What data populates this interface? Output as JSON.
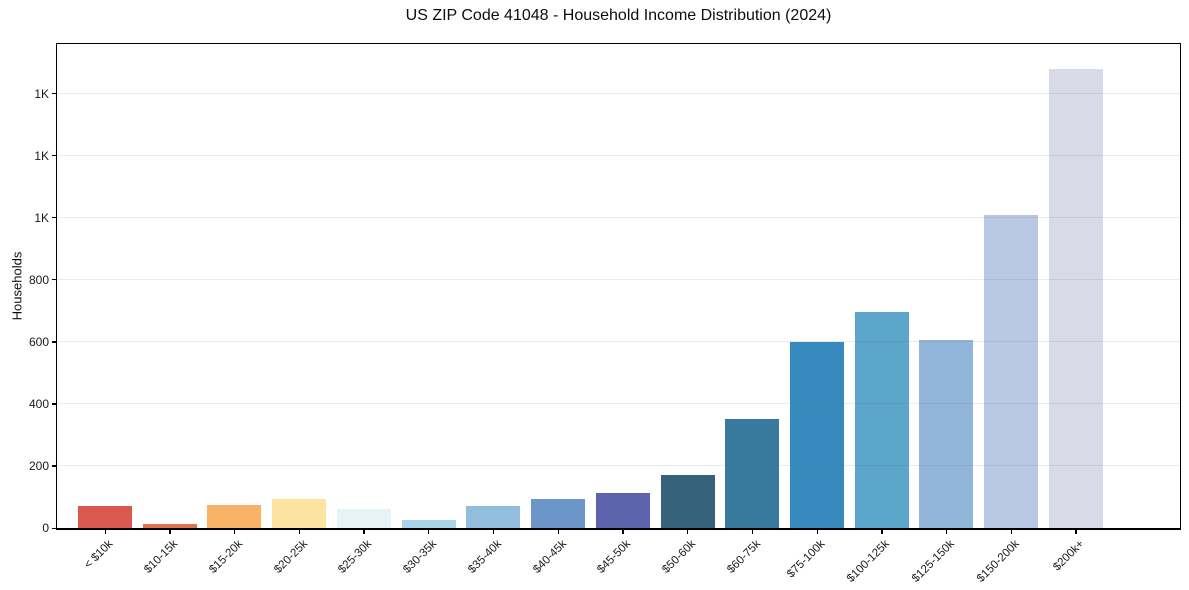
{
  "chart_data": {
    "type": "bar",
    "title": "US ZIP Code 41048 - Household Income Distribution (2024)",
    "xlabel": "",
    "ylabel": "Households",
    "ylim": [
      0,
      1560
    ],
    "grid": "horizontal",
    "legend": "none",
    "background": "#ffffff",
    "grid_color": "#ebebeb",
    "spine_color": "#000000",
    "ytick_values": [
      0,
      200,
      400,
      600,
      800,
      1000,
      1200,
      1400
    ],
    "ytick_labels": [
      "0",
      "200",
      "400",
      "600",
      "800",
      "1K",
      "1K",
      "1K"
    ],
    "categories": [
      "< $10k",
      "$10-15k",
      "$15-20k",
      "$20-25k",
      "$25-30k",
      "$30-35k",
      "$35-40k",
      "$40-45k",
      "$45-50k",
      "$50-60k",
      "$60-75k",
      "$75-100k",
      "$100-125k",
      "$125-150k",
      "$150-200k",
      "$200k+"
    ],
    "values": [
      72,
      14,
      73,
      95,
      62,
      25,
      71,
      95,
      112,
      170,
      350,
      600,
      695,
      605,
      1010,
      1480
    ],
    "bar_colors": [
      "#d95850",
      "#e0724f",
      "#f9b367",
      "#fce3a0",
      "#e6f3f7",
      "#a8d4e7",
      "#92bddb",
      "#6d96c8",
      "#5d63ac",
      "#36617a",
      "#38799e",
      "#378abd",
      "#5ba4ca",
      "#92b6d9",
      "#b9c8e2",
      "#d8dae8"
    ]
  }
}
